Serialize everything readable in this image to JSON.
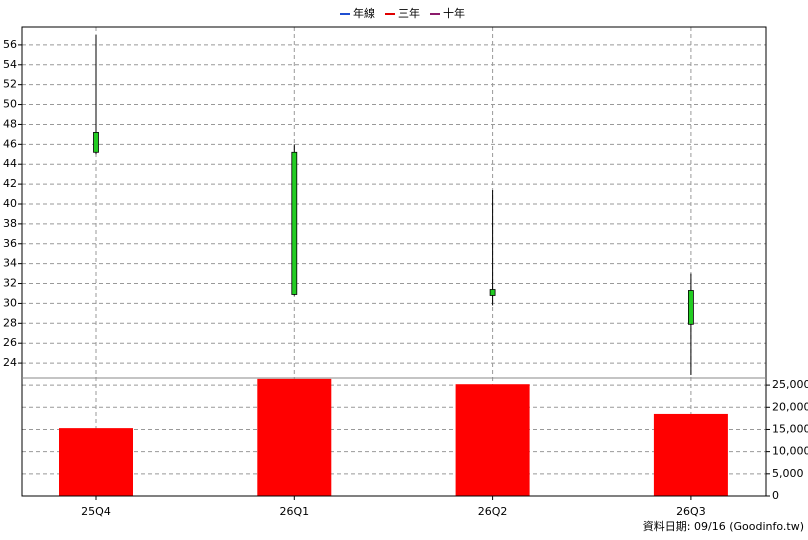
{
  "chart_data": {
    "type": "candlestick",
    "legend": [
      {
        "name": "年線",
        "color": "#1f4fd1"
      },
      {
        "name": "三年",
        "color": "#e00000"
      },
      {
        "name": "十年",
        "color": "#8b1a6b"
      }
    ],
    "categories": [
      "25Q4",
      "26Q1",
      "26Q2",
      "26Q3"
    ],
    "open": [
      47.2,
      45.2,
      31.4,
      31.3
    ],
    "high": [
      57.0,
      46.0,
      41.4,
      33.0
    ],
    "low": [
      45.0,
      30.8,
      29.8,
      22.8
    ],
    "close": [
      45.2,
      30.9,
      30.8,
      27.9
    ],
    "color": "#22cc22",
    "ylim": [
      22.5,
      57.8
    ],
    "yticks": [
      24,
      26,
      28,
      30,
      32,
      34,
      36,
      38,
      40,
      42,
      44,
      46,
      48,
      50,
      52,
      54,
      56
    ],
    "volume": {
      "values": [
        15300,
        26400,
        25200,
        18500
      ],
      "color": "#ff0000",
      "axis": "y2"
    },
    "y2lim": [
      0,
      26600
    ],
    "y2ticks": [
      0,
      {
        "value": 5000,
        "label": "5,000"
      },
      {
        "value": 10000,
        "label": "10,000"
      },
      {
        "value": 15000,
        "label": "15,000"
      },
      {
        "value": 20000,
        "label": "20,000"
      },
      {
        "value": 25000,
        "label": "25,000"
      }
    ],
    "grid": true,
    "source": "資料日期: 09/16  (Goodinfo.tw)"
  }
}
